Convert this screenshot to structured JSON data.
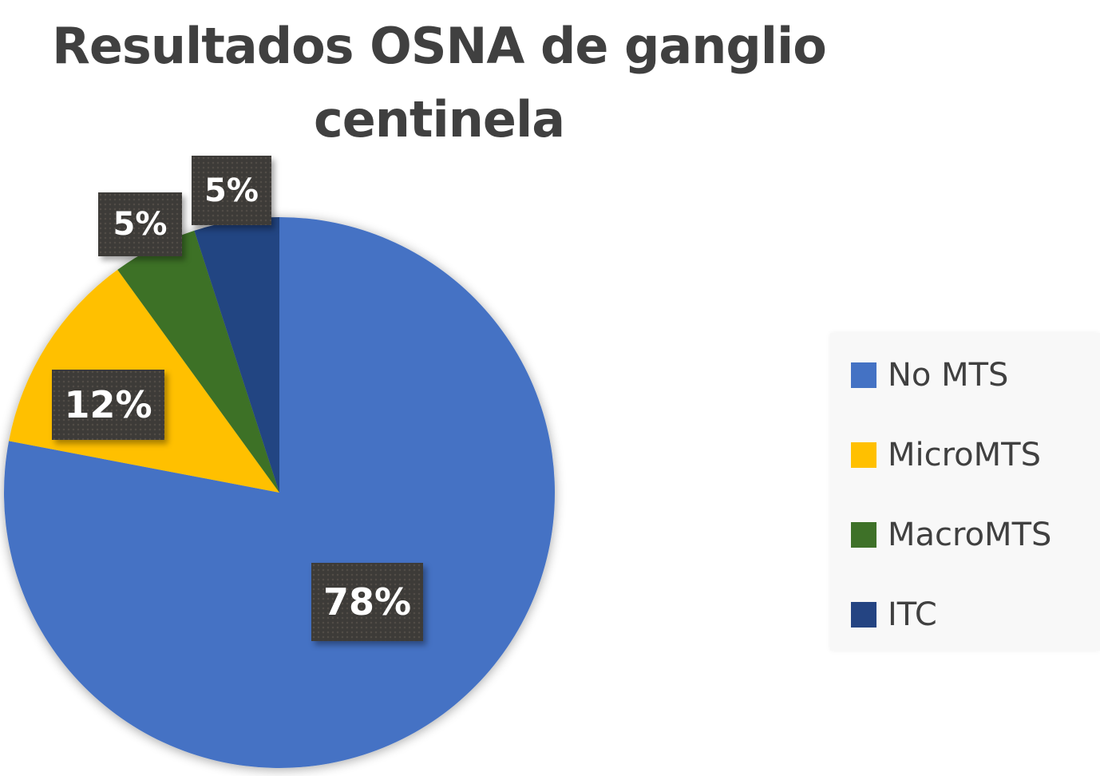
{
  "chart_data": {
    "type": "pie",
    "title": "Resultados OSNA de ganglio centinela",
    "title_lines": [
      "Resultados OSNA de ganglio",
      "centinela"
    ],
    "categories": [
      "No MTS",
      "MicroMTS",
      "MacroMTS",
      "ITC"
    ],
    "values": [
      78,
      12,
      5,
      5
    ],
    "labels": [
      "78%",
      "12%",
      "5%",
      "5%"
    ],
    "colors": [
      "#4472c4",
      "#ffc000",
      "#3e7128",
      "#244482"
    ],
    "legend_position": "right",
    "start_angle": "12 o'clock, clockwise"
  },
  "legend": {
    "items": [
      {
        "label": "No MTS",
        "color": "#4472c4"
      },
      {
        "label": "MicroMTS",
        "color": "#ffc000"
      },
      {
        "label": "MacroMTS",
        "color": "#3e7128"
      },
      {
        "label": "ITC",
        "color": "#244482"
      }
    ]
  },
  "data_labels": {
    "no_mts": "78%",
    "micro_mts": "12%",
    "macro_mts": "5%",
    "itc": "5%"
  }
}
